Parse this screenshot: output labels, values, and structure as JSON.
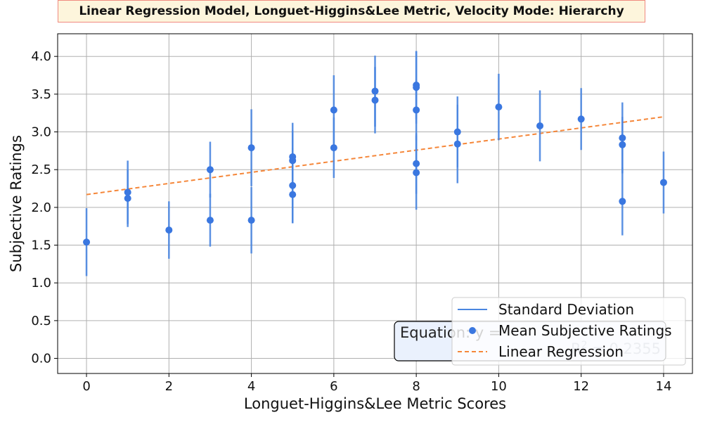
{
  "chart_data": {
    "type": "scatter",
    "title": "Linear Regression Model, Longuet-Higgins&Lee Metric, Velocity Mode: Hierarchy",
    "xlabel": "Longuet-Higgins&Lee Metric Scores",
    "ylabel": "Subjective Ratings",
    "xlim": [
      -0.7,
      14.7
    ],
    "ylim": [
      -0.2,
      4.3
    ],
    "x_ticks": [
      "0",
      "2",
      "4",
      "6",
      "8",
      "10",
      "12",
      "14"
    ],
    "y_ticks": [
      "0.0",
      "0.5",
      "1.0",
      "1.5",
      "2.0",
      "2.5",
      "3.0",
      "3.5",
      "4.0"
    ],
    "grid": true,
    "legend_position": "lower-right",
    "legend": [
      "Standard Deviation",
      "Mean Subjective Ratings",
      "Linear Regression"
    ],
    "equation_label": "Equation: y = ",
    "r2_label": "R^2 = 0.2355",
    "colors": {
      "points": "#3a77e0",
      "errorbars": "#4a86e0",
      "regression": "#f5873a",
      "title_bg": "#fdf5dc",
      "title_border": "#f08a80",
      "eq_bg": "#eaf1fd"
    },
    "series": [
      {
        "name": "Mean Subjective Ratings",
        "points": [
          {
            "x": 0,
            "y": 1.54,
            "sd": 0.45
          },
          {
            "x": 1,
            "y": 2.2,
            "sd": 0.42
          },
          {
            "x": 1,
            "y": 2.12,
            "sd": 0.38
          },
          {
            "x": 2,
            "y": 1.7,
            "sd": 0.38
          },
          {
            "x": 3,
            "y": 2.5,
            "sd": 0.37
          },
          {
            "x": 3,
            "y": 1.83,
            "sd": 0.35
          },
          {
            "x": 4,
            "y": 2.79,
            "sd": 0.51
          },
          {
            "x": 4,
            "y": 1.83,
            "sd": 0.44
          },
          {
            "x": 5,
            "y": 2.67,
            "sd": 0.45
          },
          {
            "x": 5,
            "y": 2.62,
            "sd": 0.4
          },
          {
            "x": 5,
            "y": 2.29,
            "sd": 0.5
          },
          {
            "x": 5,
            "y": 2.17,
            "sd": 0.38
          },
          {
            "x": 6,
            "y": 3.29,
            "sd": 0.46
          },
          {
            "x": 6,
            "y": 2.79,
            "sd": 0.4
          },
          {
            "x": 7,
            "y": 3.54,
            "sd": 0.47
          },
          {
            "x": 7,
            "y": 3.42,
            "sd": 0.44
          },
          {
            "x": 8,
            "y": 3.62,
            "sd": 0.45
          },
          {
            "x": 8,
            "y": 3.59,
            "sd": 0.48
          },
          {
            "x": 8,
            "y": 3.29,
            "sd": 0.4
          },
          {
            "x": 8,
            "y": 2.58,
            "sd": 0.4
          },
          {
            "x": 8,
            "y": 2.46,
            "sd": 0.49
          },
          {
            "x": 9,
            "y": 3.0,
            "sd": 0.47
          },
          {
            "x": 9,
            "y": 2.84,
            "sd": 0.52
          },
          {
            "x": 10,
            "y": 3.33,
            "sd": 0.44
          },
          {
            "x": 11,
            "y": 3.08,
            "sd": 0.47
          },
          {
            "x": 12,
            "y": 3.17,
            "sd": 0.41
          },
          {
            "x": 13,
            "y": 2.92,
            "sd": 0.47
          },
          {
            "x": 13,
            "y": 2.83,
            "sd": 0.37
          },
          {
            "x": 13,
            "y": 2.08,
            "sd": 0.45
          },
          {
            "x": 14,
            "y": 2.33,
            "sd": 0.41
          }
        ]
      },
      {
        "name": "Linear Regression",
        "line": [
          {
            "x": 0,
            "y": 2.17
          },
          {
            "x": 14,
            "y": 3.2
          }
        ]
      }
    ]
  }
}
